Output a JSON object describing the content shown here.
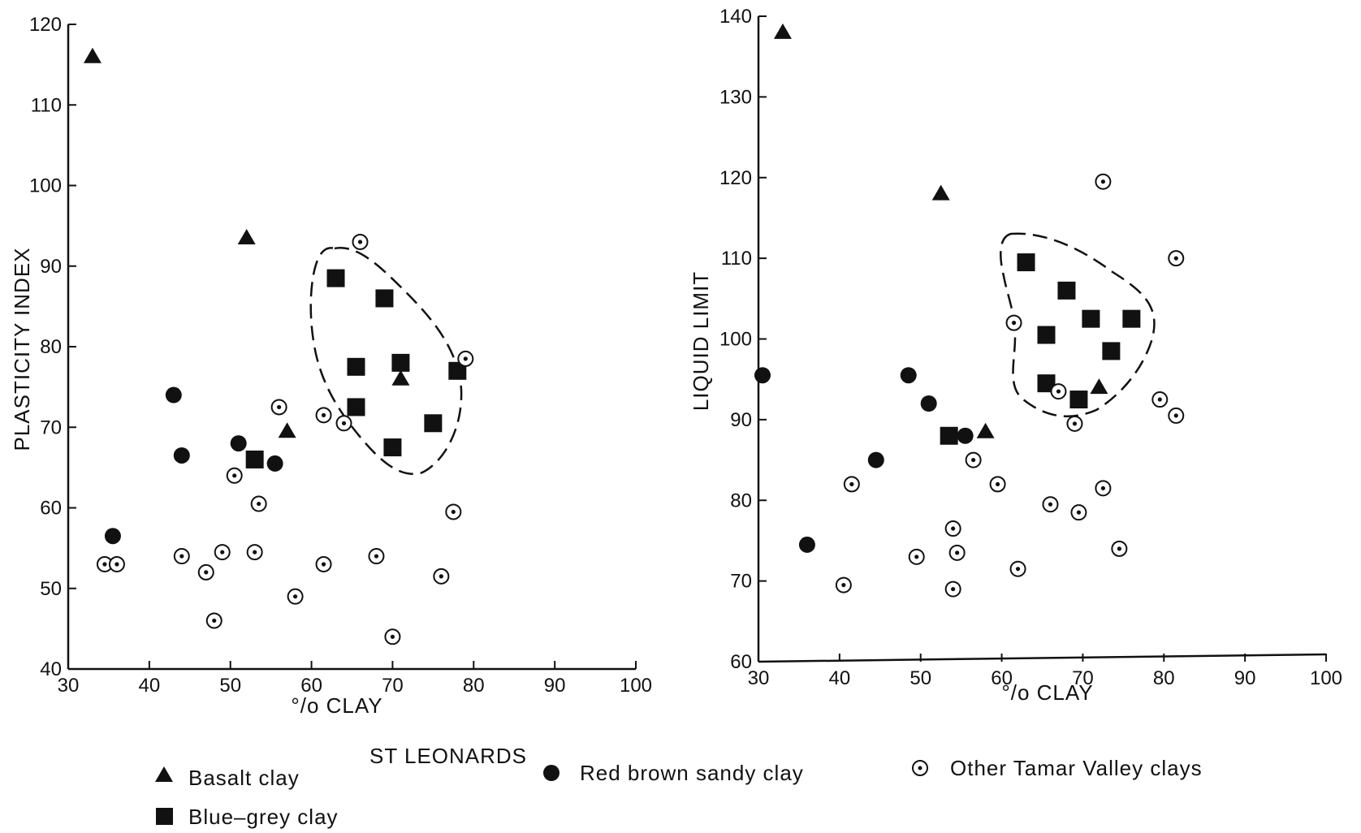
{
  "caption": "ST LEONARDS",
  "legend": [
    {
      "key": "basalt",
      "label": "Basalt clay",
      "symbol": "triangle"
    },
    {
      "key": "bluegrey",
      "label": "Blue–grey clay",
      "symbol": "square"
    },
    {
      "key": "redbrown",
      "label": "Red brown sandy clay",
      "symbol": "filled-circle"
    },
    {
      "key": "other",
      "label": "Other Tamar Valley clays",
      "symbol": "dotted-circle"
    }
  ],
  "chart_data": [
    {
      "type": "scatter",
      "xlabel": "°/o CLAY",
      "ylabel": "PLASTICITY INDEX",
      "xlim": [
        30,
        100
      ],
      "ylim": [
        40,
        120
      ],
      "xticks": [
        30,
        40,
        50,
        60,
        70,
        80,
        90,
        100
      ],
      "yticks": [
        40,
        50,
        60,
        70,
        80,
        90,
        100,
        110,
        120
      ],
      "grid": false,
      "series": [
        {
          "name": "Basalt clay",
          "key": "basalt",
          "points": [
            [
              33,
              116
            ],
            [
              52,
              93.5
            ],
            [
              57,
              69.5
            ],
            [
              71,
              76
            ]
          ]
        },
        {
          "name": "Blue–grey clay",
          "key": "bluegrey",
          "points": [
            [
              63,
              88.5
            ],
            [
              69,
              86
            ],
            [
              65.5,
              77.5
            ],
            [
              71,
              78
            ],
            [
              78,
              77
            ],
            [
              65.5,
              72.5
            ],
            [
              75,
              70.5
            ],
            [
              70,
              67.5
            ],
            [
              53,
              66
            ]
          ]
        },
        {
          "name": "Red brown sandy clay",
          "key": "redbrown",
          "points": [
            [
              43,
              74
            ],
            [
              44,
              66.5
            ],
            [
              51,
              68
            ],
            [
              55.5,
              65.5
            ],
            [
              35.5,
              56.5
            ]
          ]
        },
        {
          "name": "Other Tamar Valley clays",
          "key": "other",
          "points": [
            [
              66,
              93
            ],
            [
              79,
              78.5
            ],
            [
              56,
              72.5
            ],
            [
              61.5,
              71.5
            ],
            [
              64,
              70.5
            ],
            [
              50.5,
              64
            ],
            [
              53.5,
              60.5
            ],
            [
              77.5,
              59.5
            ],
            [
              34.5,
              53
            ],
            [
              36,
              53
            ],
            [
              44,
              54
            ],
            [
              49,
              54.5
            ],
            [
              53,
              54.5
            ],
            [
              61.5,
              53
            ],
            [
              68,
              54
            ],
            [
              47,
              52
            ],
            [
              76,
              51.5
            ],
            [
              58,
              49
            ],
            [
              48,
              46
            ],
            [
              70,
              44
            ]
          ]
        }
      ],
      "annotations": [
        "dashed boundary enclosing the St Leonards blue-grey clay group"
      ]
    },
    {
      "type": "scatter",
      "xlabel": "°/o CLAY",
      "ylabel": "LIQUID LIMIT",
      "xlim": [
        30,
        100
      ],
      "ylim": [
        60,
        140
      ],
      "xticks": [
        30,
        40,
        50,
        60,
        70,
        80,
        90,
        100
      ],
      "yticks": [
        60,
        70,
        80,
        90,
        100,
        110,
        120,
        130,
        140
      ],
      "grid": false,
      "series": [
        {
          "name": "Basalt clay",
          "key": "basalt",
          "points": [
            [
              33,
              138
            ],
            [
              52.5,
              118
            ],
            [
              58,
              88.5
            ],
            [
              72,
              94
            ]
          ]
        },
        {
          "name": "Blue–grey clay",
          "key": "bluegrey",
          "points": [
            [
              63,
              109.5
            ],
            [
              68,
              106
            ],
            [
              65.5,
              100.5
            ],
            [
              71,
              102.5
            ],
            [
              76,
              102.5
            ],
            [
              73.5,
              98.5
            ],
            [
              65.5,
              94.5
            ],
            [
              69.5,
              92.5
            ],
            [
              53.5,
              88
            ]
          ]
        },
        {
          "name": "Red brown sandy clay",
          "key": "redbrown",
          "points": [
            [
              30.5,
              95.5
            ],
            [
              48.5,
              95.5
            ],
            [
              51,
              92
            ],
            [
              55.5,
              88
            ],
            [
              44.5,
              85
            ],
            [
              36,
              74.5
            ]
          ]
        },
        {
          "name": "Other Tamar Valley clays",
          "key": "other",
          "points": [
            [
              72.5,
              119.5
            ],
            [
              81.5,
              110
            ],
            [
              61.5,
              102
            ],
            [
              67,
              93.5
            ],
            [
              69,
              89.5
            ],
            [
              79.5,
              92.5
            ],
            [
              81.5,
              90.5
            ],
            [
              56.5,
              85
            ],
            [
              59.5,
              82
            ],
            [
              41.5,
              82
            ],
            [
              66,
              79.5
            ],
            [
              72.5,
              81.5
            ],
            [
              69.5,
              78.5
            ],
            [
              54,
              76.5
            ],
            [
              49.5,
              73
            ],
            [
              54.5,
              73.5
            ],
            [
              74.5,
              74
            ],
            [
              62,
              71.5
            ],
            [
              40.5,
              69.5
            ],
            [
              54,
              69
            ]
          ]
        }
      ],
      "annotations": [
        "dashed boundary enclosing the St Leonards blue-grey clay group"
      ]
    }
  ]
}
